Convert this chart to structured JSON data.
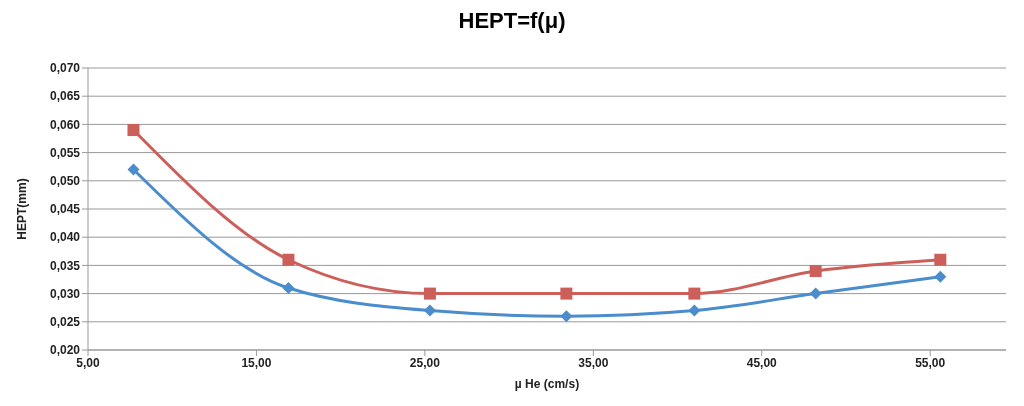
{
  "chart_data": {
    "type": "line",
    "title": "HEPT=f(μ)",
    "xlabel": "µ He (cm/s)",
    "ylabel": "HEPT(mm)",
    "x": [
      7.7,
      16.9,
      25.3,
      33.4,
      41.0,
      48.2,
      55.6
    ],
    "series": [
      {
        "color": "#4a8ccc",
        "marker": "diamond",
        "values": [
          0.052,
          0.031,
          0.027,
          0.026,
          0.027,
          0.03,
          0.033
        ]
      },
      {
        "color": "#cc5f5a",
        "marker": "square",
        "values": [
          0.059,
          0.036,
          0.03,
          0.03,
          0.03,
          0.034,
          0.036
        ]
      }
    ],
    "xlim": [
      5,
      59.5
    ],
    "xticks": [
      {
        "value": 5,
        "label": "5,00"
      },
      {
        "value": 15,
        "label": "15,00"
      },
      {
        "value": 25,
        "label": "25,00"
      },
      {
        "value": 35,
        "label": "35,00"
      },
      {
        "value": 45,
        "label": "45,00"
      },
      {
        "value": 55,
        "label": "55,00"
      }
    ],
    "ylim": [
      0.02,
      0.07
    ],
    "yticks": [
      {
        "value": 0.02,
        "label": "0,020"
      },
      {
        "value": 0.025,
        "label": "0,025"
      },
      {
        "value": 0.03,
        "label": "0,030"
      },
      {
        "value": 0.035,
        "label": "0,035"
      },
      {
        "value": 0.04,
        "label": "0,040"
      },
      {
        "value": 0.045,
        "label": "0,045"
      },
      {
        "value": 0.05,
        "label": "0,050"
      },
      {
        "value": 0.055,
        "label": "0,055"
      },
      {
        "value": 0.06,
        "label": "0,060"
      },
      {
        "value": 0.065,
        "label": "0,065"
      },
      {
        "value": 0.07,
        "label": "0,070"
      }
    ],
    "grid": "y",
    "legend": false,
    "line_style": "solid"
  }
}
